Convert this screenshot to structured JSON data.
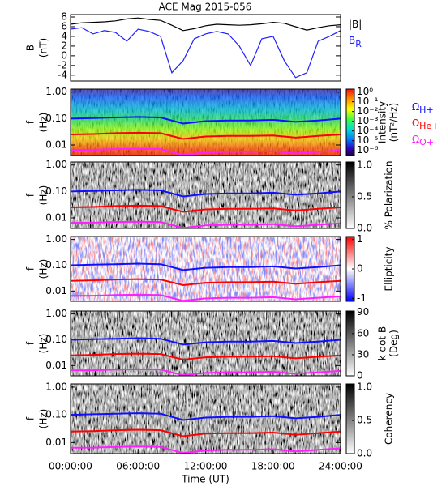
{
  "chart_data": [
    {
      "type": "line",
      "title": "ACE Mag 2015-056",
      "ylabel": [
        "B",
        "(nT)"
      ],
      "x": [
        0,
        1,
        2,
        3,
        4,
        5,
        6,
        7,
        8,
        9,
        10,
        11,
        12,
        13,
        14,
        15,
        16,
        17,
        18,
        19,
        20,
        21,
        22,
        23,
        24
      ],
      "xlim": [
        0,
        24
      ],
      "ylim": [
        -5.2,
        8.5
      ],
      "yticks": [
        -4,
        -2,
        0,
        2,
        4,
        6,
        8
      ],
      "series": [
        {
          "name": "|B|",
          "color": "#000000",
          "values": [
            6.5,
            6.8,
            6.9,
            7.0,
            7.2,
            7.6,
            7.8,
            7.5,
            7.3,
            6.3,
            5.2,
            5.6,
            6.2,
            6.5,
            6.4,
            6.3,
            6.4,
            6.6,
            6.9,
            6.7,
            6.0,
            5.3,
            5.8,
            6.2,
            6.4
          ]
        },
        {
          "name": "B",
          "name_sub": "R",
          "color": "#2020ff",
          "values": [
            5.5,
            5.8,
            4.5,
            5.2,
            4.8,
            3.0,
            5.5,
            5.0,
            4.0,
            -3.5,
            -1.0,
            3.5,
            4.5,
            5.0,
            4.5,
            2.0,
            -2.0,
            3.5,
            4.0,
            -1.0,
            -4.5,
            -3.5,
            3.0,
            4.0,
            5.2
          ]
        }
      ]
    },
    {
      "type": "spectrogram",
      "ylabel": [
        "f",
        "(Hz)"
      ],
      "colormap": "rainbow",
      "ylog": true,
      "x": [
        0,
        2,
        4,
        6,
        8,
        10,
        12,
        14,
        16,
        18,
        20,
        22,
        24
      ],
      "xlim": [
        0,
        24
      ],
      "ylim": [
        0.004,
        1.3
      ],
      "yticks": [
        {
          "value": 1,
          "label": "1.00"
        },
        {
          "value": 0.1,
          "label": "0.10"
        },
        {
          "value": 0.01,
          "label": "0.01"
        }
      ],
      "colorbar": {
        "label": [
          "Intensity",
          "(nT²/Hz)"
        ],
        "log": true,
        "clim": [
          3e-07,
          2
        ],
        "ticks": [
          {
            "value": 1,
            "label": "10⁰"
          },
          {
            "value": 0.1,
            "label": "10⁻¹"
          },
          {
            "value": 0.01,
            "label": "10⁻²"
          },
          {
            "value": 0.001,
            "label": "10⁻³"
          },
          {
            "value": 0.0001,
            "label": "10⁻⁴"
          },
          {
            "value": 1e-05,
            "label": "10⁻⁵"
          },
          {
            "value": 1e-06,
            "label": "10⁻⁶"
          }
        ]
      },
      "series": [
        {
          "name": "Ω",
          "name_sub": "H+",
          "color": "#1010ff",
          "values": [
            0.1,
            0.105,
            0.11,
            0.115,
            0.11,
            0.065,
            0.08,
            0.085,
            0.085,
            0.09,
            0.075,
            0.085,
            0.1
          ]
        },
        {
          "name": "Ω",
          "name_sub": "He+",
          "color": "#ff0000",
          "values": [
            0.025,
            0.026,
            0.028,
            0.029,
            0.028,
            0.017,
            0.021,
            0.022,
            0.022,
            0.023,
            0.019,
            0.022,
            0.025
          ]
        },
        {
          "name": "Ω",
          "name_sub": "O+",
          "color": "#ff20ff",
          "values": [
            0.0065,
            0.0066,
            0.007,
            0.0072,
            0.007,
            0.0042,
            0.0052,
            0.0055,
            0.0055,
            0.0058,
            0.0048,
            0.0055,
            0.0062
          ]
        }
      ]
    },
    {
      "type": "spectrogram",
      "ylabel": [
        "f",
        "(Hz)"
      ],
      "colormap": "gray",
      "ylog": true,
      "x": [
        0,
        2,
        4,
        6,
        8,
        10,
        12,
        14,
        16,
        18,
        20,
        22,
        24
      ],
      "xlim": [
        0,
        24
      ],
      "ylim": [
        0.004,
        1.3
      ],
      "yticks": [
        {
          "value": 1,
          "label": "1.00"
        },
        {
          "value": 0.1,
          "label": "0.10"
        },
        {
          "value": 0.01,
          "label": "0.01"
        }
      ],
      "colorbar": {
        "label": [
          "% Polarization"
        ],
        "log": false,
        "clim": [
          0,
          1.05
        ],
        "ticks": [
          {
            "value": 1,
            "label": "1.0"
          },
          {
            "value": 0.5,
            "label": "0.5"
          },
          {
            "value": 0,
            "label": "0.0"
          }
        ]
      },
      "series": [
        {
          "color": "#1010ff",
          "values": [
            0.1,
            0.105,
            0.11,
            0.115,
            0.11,
            0.065,
            0.08,
            0.085,
            0.085,
            0.09,
            0.075,
            0.085,
            0.1
          ]
        },
        {
          "color": "#ff0000",
          "values": [
            0.025,
            0.026,
            0.028,
            0.029,
            0.028,
            0.017,
            0.021,
            0.022,
            0.022,
            0.023,
            0.019,
            0.022,
            0.025
          ]
        },
        {
          "color": "#ff20ff",
          "values": [
            0.0065,
            0.0066,
            0.007,
            0.0072,
            0.007,
            0.0042,
            0.0052,
            0.0055,
            0.0055,
            0.0058,
            0.0048,
            0.0055,
            0.0062
          ]
        }
      ]
    },
    {
      "type": "spectrogram",
      "ylabel": [
        "f",
        "(Hz)"
      ],
      "colormap": "bwr",
      "ylog": true,
      "x": [
        0,
        2,
        4,
        6,
        8,
        10,
        12,
        14,
        16,
        18,
        20,
        22,
        24
      ],
      "xlim": [
        0,
        24
      ],
      "ylim": [
        0.004,
        1.3
      ],
      "yticks": [
        {
          "value": 1,
          "label": "1.00"
        },
        {
          "value": 0.1,
          "label": "0.10"
        },
        {
          "value": 0.01,
          "label": "0.01"
        }
      ],
      "colorbar": {
        "label": [
          "Ellipticity"
        ],
        "log": false,
        "clim": [
          -1.1,
          1.1
        ],
        "ticks": [
          1,
          0,
          -1
        ]
      },
      "series": [
        {
          "color": "#1010ff",
          "values": [
            0.1,
            0.105,
            0.11,
            0.115,
            0.11,
            0.065,
            0.08,
            0.085,
            0.085,
            0.09,
            0.075,
            0.085,
            0.1
          ]
        },
        {
          "color": "#ff0000",
          "values": [
            0.025,
            0.026,
            0.028,
            0.029,
            0.028,
            0.017,
            0.021,
            0.022,
            0.022,
            0.023,
            0.019,
            0.022,
            0.025
          ]
        },
        {
          "color": "#ff20ff",
          "values": [
            0.0065,
            0.0066,
            0.007,
            0.0072,
            0.007,
            0.0042,
            0.0052,
            0.0055,
            0.0055,
            0.0058,
            0.0048,
            0.0055,
            0.0062
          ]
        }
      ]
    },
    {
      "type": "spectrogram",
      "ylabel": [
        "f",
        "(Hz)"
      ],
      "colormap": "gray",
      "ylog": true,
      "x": [
        0,
        2,
        4,
        6,
        8,
        10,
        12,
        14,
        16,
        18,
        20,
        22,
        24
      ],
      "xlim": [
        0,
        24
      ],
      "ylim": [
        0.004,
        1.3
      ],
      "yticks": [
        {
          "value": 1,
          "label": "1.00"
        },
        {
          "value": 0.1,
          "label": "0.10"
        },
        {
          "value": 0.01,
          "label": "0.01"
        }
      ],
      "colorbar": {
        "label": [
          "k dot B",
          "(Deg)"
        ],
        "log": false,
        "clim": [
          0,
          92
        ],
        "ticks": [
          90,
          60,
          30,
          0
        ]
      },
      "series": [
        {
          "color": "#1010ff",
          "values": [
            0.1,
            0.105,
            0.11,
            0.115,
            0.11,
            0.065,
            0.08,
            0.085,
            0.085,
            0.09,
            0.075,
            0.085,
            0.1
          ]
        },
        {
          "color": "#ff0000",
          "values": [
            0.025,
            0.026,
            0.028,
            0.029,
            0.028,
            0.017,
            0.021,
            0.022,
            0.022,
            0.023,
            0.019,
            0.022,
            0.025
          ]
        },
        {
          "color": "#ff20ff",
          "values": [
            0.0065,
            0.0066,
            0.007,
            0.0072,
            0.007,
            0.0042,
            0.0052,
            0.0055,
            0.0055,
            0.0058,
            0.0048,
            0.0055,
            0.0062
          ]
        }
      ]
    },
    {
      "type": "spectrogram",
      "ylabel": [
        "f",
        "(Hz)"
      ],
      "colormap": "gray",
      "ylog": true,
      "xlabel": "Time (UT)",
      "x": [
        0,
        2,
        4,
        6,
        8,
        10,
        12,
        14,
        16,
        18,
        20,
        22,
        24
      ],
      "xlim": [
        0,
        24
      ],
      "ylim": [
        0.004,
        1.3
      ],
      "xticks": [
        {
          "value": 0,
          "label": "00:00:00"
        },
        {
          "value": 6,
          "label": "06:00:00"
        },
        {
          "value": 12,
          "label": "12:00:00"
        },
        {
          "value": 18,
          "label": "18:00:00"
        },
        {
          "value": 24,
          "label": "24:00:00"
        }
      ],
      "yticks": [
        {
          "value": 1,
          "label": "1.00"
        },
        {
          "value": 0.1,
          "label": "0.10"
        },
        {
          "value": 0.01,
          "label": "0.01"
        }
      ],
      "colorbar": {
        "label": [
          "Coherency"
        ],
        "log": false,
        "clim": [
          0,
          1.05
        ],
        "ticks": [
          {
            "value": 1,
            "label": "1.0"
          },
          {
            "value": 0.5,
            "label": "0.5"
          },
          {
            "value": 0,
            "label": "0.0"
          }
        ]
      },
      "series": [
        {
          "color": "#1010ff",
          "values": [
            0.1,
            0.105,
            0.11,
            0.115,
            0.11,
            0.065,
            0.08,
            0.085,
            0.085,
            0.09,
            0.075,
            0.085,
            0.1
          ]
        },
        {
          "color": "#ff0000",
          "values": [
            0.025,
            0.026,
            0.028,
            0.029,
            0.028,
            0.017,
            0.021,
            0.022,
            0.022,
            0.023,
            0.019,
            0.022,
            0.025
          ]
        },
        {
          "color": "#ff20ff",
          "values": [
            0.0065,
            0.0066,
            0.007,
            0.0072,
            0.007,
            0.0042,
            0.0052,
            0.0055,
            0.0055,
            0.0058,
            0.0048,
            0.0055,
            0.0062
          ]
        }
      ]
    }
  ]
}
